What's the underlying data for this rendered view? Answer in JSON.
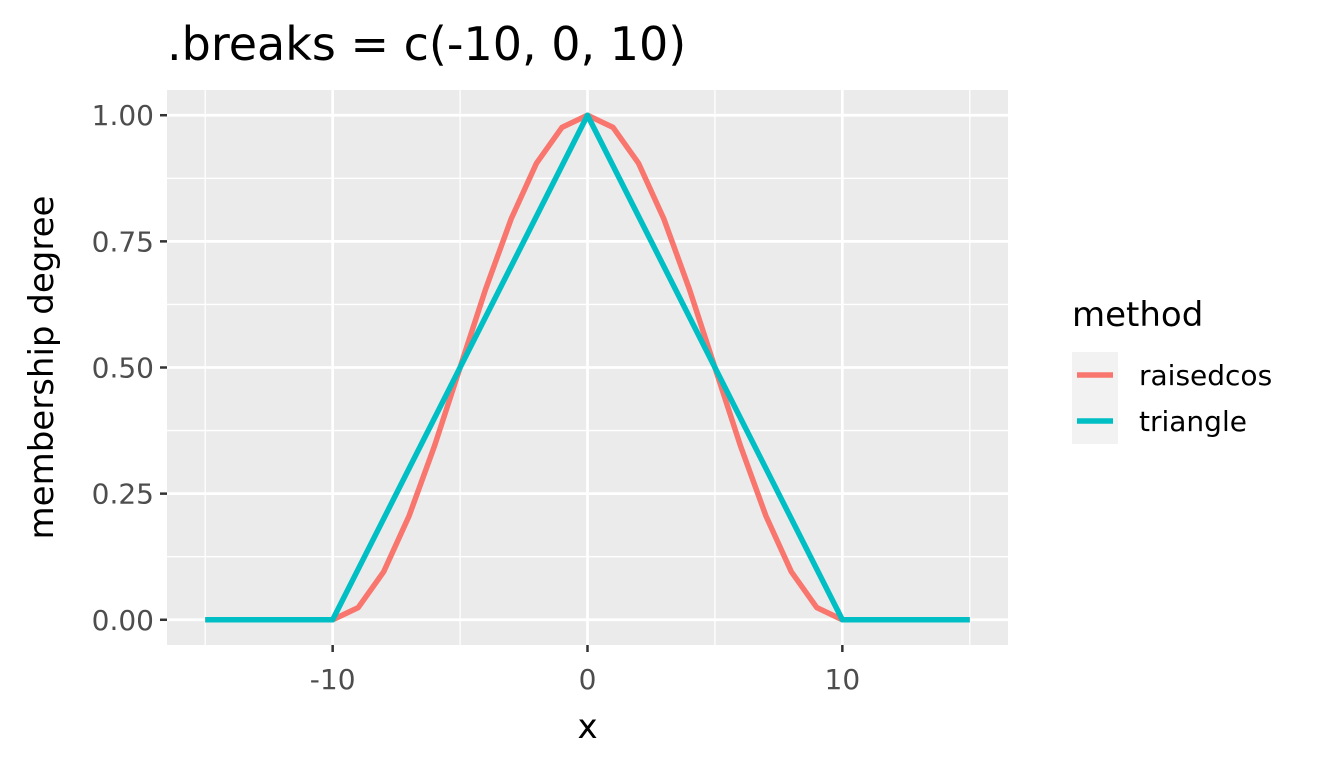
{
  "chart_data": {
    "type": "line",
    "title": ".breaks = c(-10, 0, 10)",
    "xlabel": "x",
    "ylabel": "membership degree",
    "xlim": [
      -16.5,
      16.5
    ],
    "ylim": [
      -0.05,
      1.05
    ],
    "x_ticks": [
      -10,
      0,
      10
    ],
    "x_tick_labels": [
      "-10",
      "0",
      "10"
    ],
    "y_ticks": [
      0,
      0.25,
      0.5,
      0.75,
      1.0
    ],
    "y_tick_labels": [
      "0.00",
      "0.25",
      "0.50",
      "0.75",
      "1.00"
    ],
    "grid": true,
    "legend": {
      "title": "method",
      "placement": "right"
    },
    "series": [
      {
        "name": "raisedcos",
        "color": "#F8766D",
        "x": [
          -15,
          -10,
          -9,
          -8,
          -7,
          -6,
          -5,
          -4,
          -3,
          -2,
          -1,
          0,
          1,
          2,
          3,
          4,
          5,
          6,
          7,
          8,
          9,
          10,
          15
        ],
        "y": [
          0,
          0,
          0.024,
          0.095,
          0.206,
          0.345,
          0.5,
          0.655,
          0.794,
          0.905,
          0.976,
          1,
          0.976,
          0.905,
          0.794,
          0.655,
          0.5,
          0.345,
          0.206,
          0.095,
          0.024,
          0,
          0
        ]
      },
      {
        "name": "triangle",
        "color": "#00BFC4",
        "x": [
          -15,
          -10,
          0,
          10,
          15
        ],
        "y": [
          0,
          0,
          1,
          0,
          0
        ]
      }
    ]
  }
}
